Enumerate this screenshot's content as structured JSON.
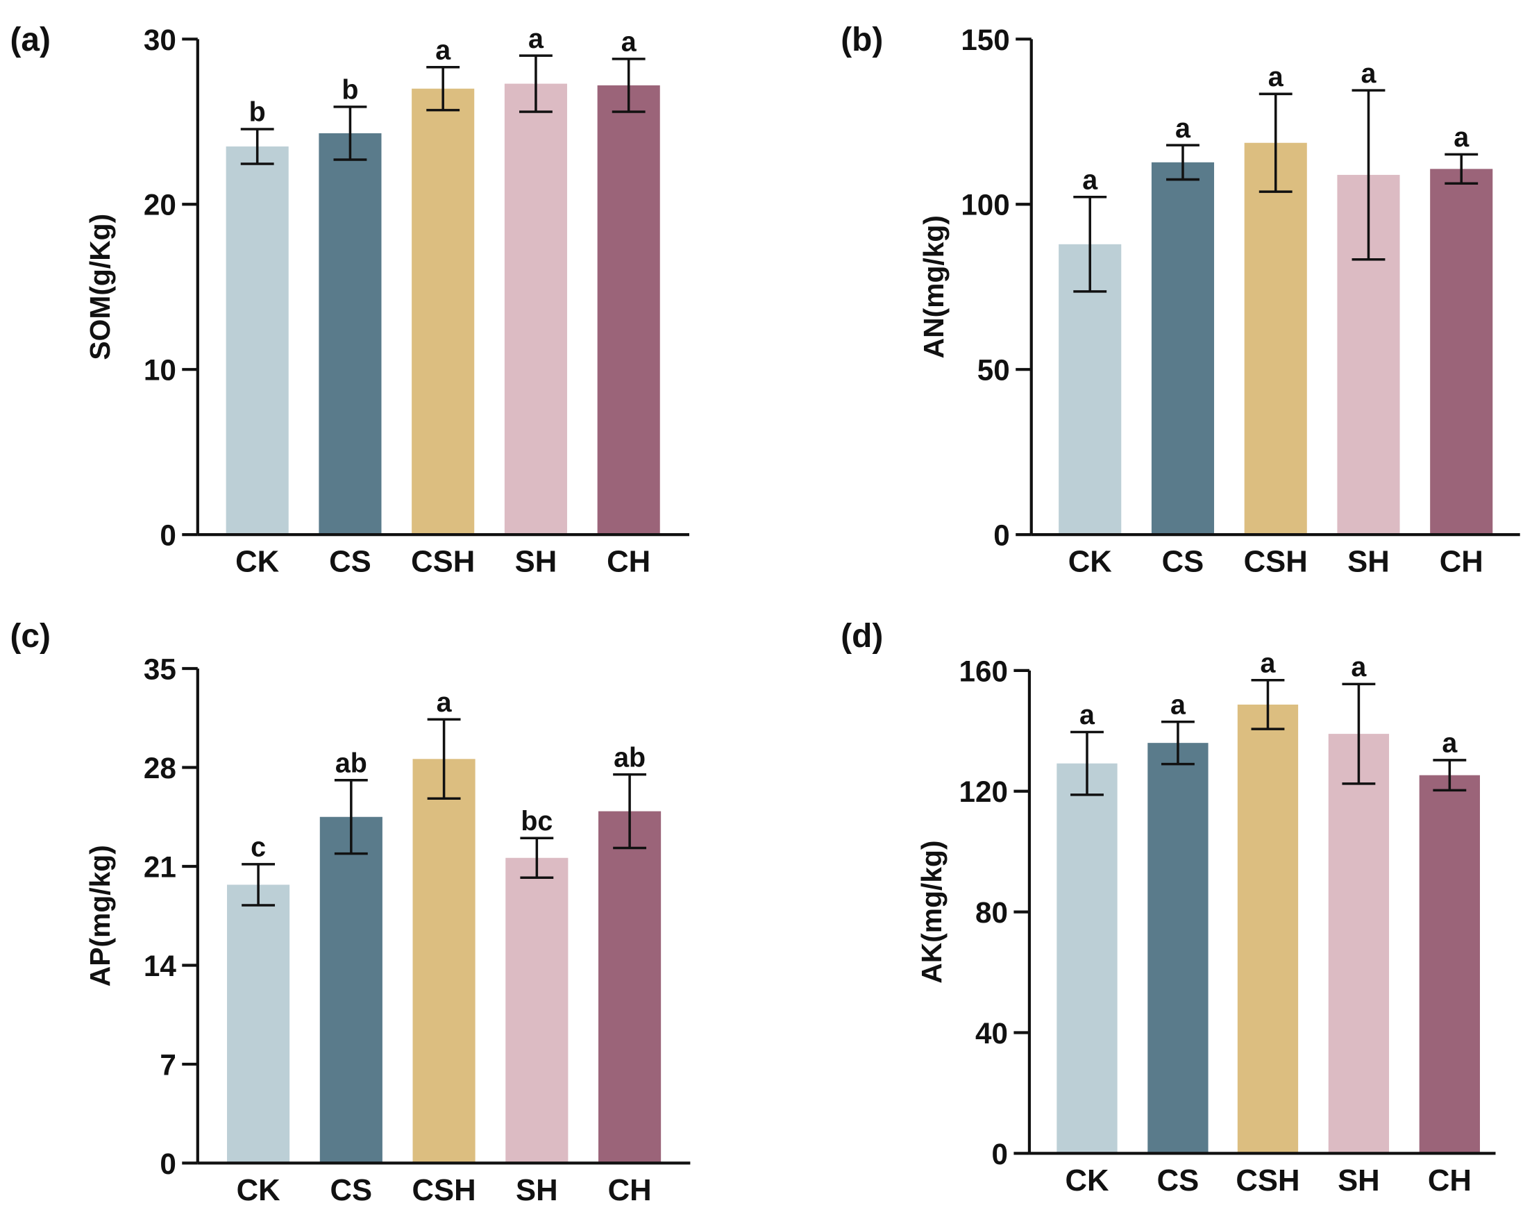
{
  "colors": {
    "CK": "#bccfd6",
    "CS": "#5a7b8b",
    "CSH": "#dcbe80",
    "SH": "#dcbbc3",
    "CH": "#9b6479"
  },
  "chart_data": [
    {
      "type": "bar",
      "panel_label": "(a)",
      "ylabel": "SOM(g/Kg)",
      "categories": [
        "CK",
        "CS",
        "CSH",
        "SH",
        "CH"
      ],
      "values": [
        23.5,
        24.3,
        27.0,
        27.3,
        27.2
      ],
      "errors": [
        1.05,
        1.6,
        1.3,
        1.7,
        1.6
      ],
      "letters": [
        "b",
        "b",
        "a",
        "a",
        "a"
      ],
      "ylim": [
        0,
        30
      ],
      "yticks": [
        0,
        10,
        20,
        30
      ]
    },
    {
      "type": "bar",
      "panel_label": "(b)",
      "ylabel": "AN(mg/kg)",
      "categories": [
        "CK",
        "CS",
        "CSH",
        "SH",
        "CH"
      ],
      "values": [
        87.9,
        112.7,
        118.6,
        108.9,
        110.7
      ],
      "errors": [
        14.3,
        5.2,
        14.8,
        25.6,
        4.4
      ],
      "letters": [
        "a",
        "a",
        "a",
        "a",
        "a"
      ],
      "ylim": [
        0,
        150
      ],
      "yticks": [
        0,
        50,
        100,
        150
      ]
    },
    {
      "type": "bar",
      "panel_label": "(c)",
      "ylabel": "AP(mg/kg)",
      "categories": [
        "CK",
        "CS",
        "CSH",
        "SH",
        "CH"
      ],
      "values": [
        19.7,
        24.5,
        28.6,
        21.6,
        24.9
      ],
      "errors": [
        1.45,
        2.6,
        2.8,
        1.4,
        2.6
      ],
      "letters": [
        "c",
        "ab",
        "a",
        "bc",
        "ab"
      ],
      "ylim": [
        0,
        35
      ],
      "yticks": [
        0,
        7,
        14,
        21,
        28,
        35
      ]
    },
    {
      "type": "bar",
      "panel_label": "(d)",
      "ylabel": "AK(mg/kg)",
      "categories": [
        "CK",
        "CS",
        "CSH",
        "SH",
        "CH"
      ],
      "values": [
        129.2,
        136.0,
        148.7,
        139.0,
        125.3
      ],
      "errors": [
        10.4,
        7.0,
        8.1,
        16.5,
        5.0
      ],
      "letters": [
        "a",
        "a",
        "a",
        "a",
        "a"
      ],
      "ylim": [
        0,
        160
      ],
      "yticks": [
        0,
        40,
        80,
        120,
        160
      ]
    }
  ]
}
